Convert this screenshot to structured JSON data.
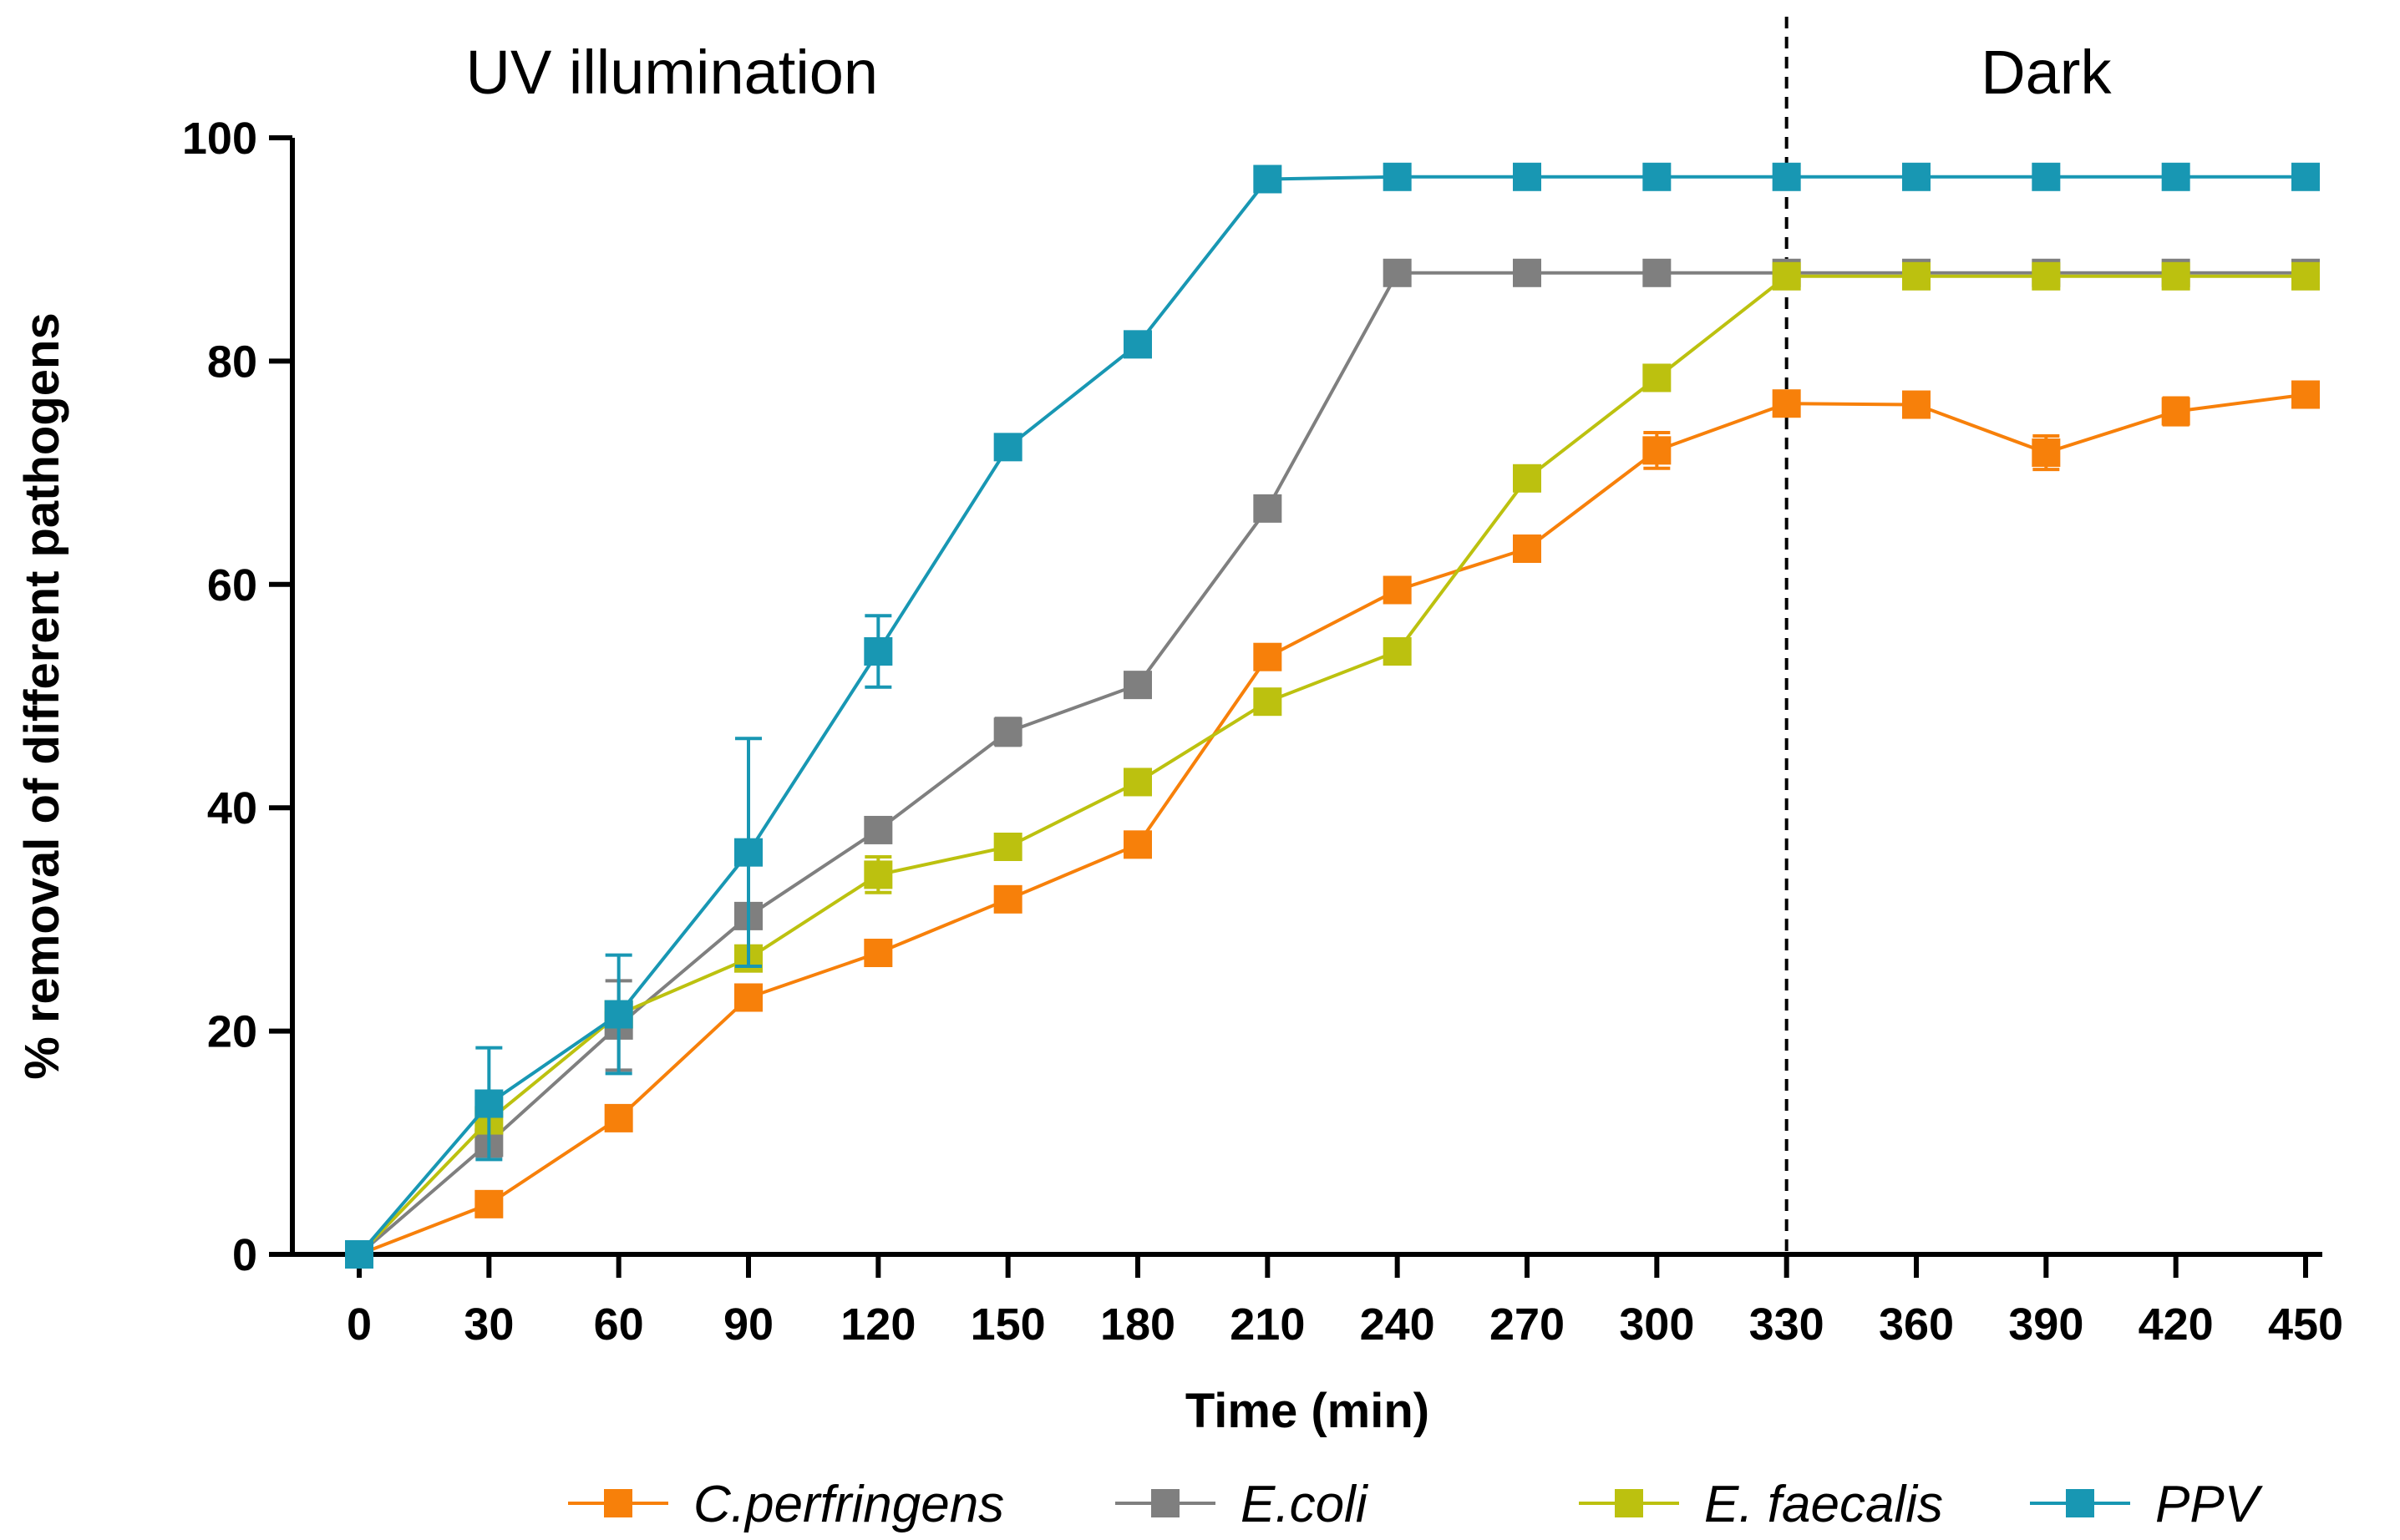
{
  "chart_data": {
    "type": "line",
    "xlabel": "Time (min)",
    "ylabel": "% removal of different pathogens",
    "ylim": [
      0,
      100
    ],
    "yticks": [
      0,
      20,
      40,
      60,
      80,
      100
    ],
    "xlim": [
      0,
      450
    ],
    "x": [
      0,
      30,
      60,
      90,
      120,
      150,
      180,
      210,
      240,
      270,
      300,
      330,
      360,
      390,
      420,
      450
    ],
    "regions": [
      {
        "label": "UV illumination",
        "from": 0,
        "to": 330
      },
      {
        "label": "Dark",
        "from": 330,
        "to": 450
      }
    ],
    "divider_x": 330,
    "marker": "square",
    "series": [
      {
        "name": "C.perfringens",
        "color": "#f7800a",
        "values": [
          0,
          4.5,
          12.2,
          23,
          27,
          31.8,
          36.7,
          53.5,
          59.5,
          63.2,
          72,
          76.2,
          76.1,
          71.8,
          75.5,
          77
        ],
        "errors": [
          0,
          0,
          0,
          0,
          0,
          0,
          0,
          0,
          0,
          0,
          1.6,
          0,
          0,
          1.5,
          1.2,
          0
        ]
      },
      {
        "name": "E.coli",
        "color": "#7f7f7f",
        "values": [
          0,
          10,
          20.5,
          30.3,
          38,
          46.8,
          51,
          66.8,
          87.9,
          87.9,
          87.9,
          87.9,
          87.9,
          87.9,
          87.9,
          87.9
        ],
        "errors": [
          0,
          1.2,
          4,
          0,
          0,
          1.2,
          0,
          0,
          0,
          0,
          0,
          0,
          0,
          0,
          0,
          0
        ]
      },
      {
        "name": "E. faecalis",
        "color": "#bcc10f",
        "values": [
          0,
          12,
          21.5,
          26.5,
          34,
          36.5,
          42.3,
          49.5,
          54,
          69.5,
          78.5,
          87.6,
          87.6,
          87.6,
          87.6,
          87.6
        ],
        "errors": [
          0,
          0,
          0,
          0,
          1.6,
          0,
          0,
          0,
          0,
          0,
          0,
          0,
          0,
          0,
          0,
          0
        ]
      },
      {
        "name": "PPV",
        "color": "#1897b3",
        "values": [
          0,
          13.5,
          21.5,
          36,
          54,
          72.3,
          81.5,
          96.3,
          96.5,
          96.5,
          96.5,
          96.5,
          96.5,
          96.5,
          96.5,
          96.5
        ],
        "errors": [
          0,
          5,
          5.3,
          10.2,
          3.2,
          0,
          0,
          0,
          0,
          0,
          0,
          0,
          0,
          0,
          0,
          0
        ]
      }
    ]
  }
}
